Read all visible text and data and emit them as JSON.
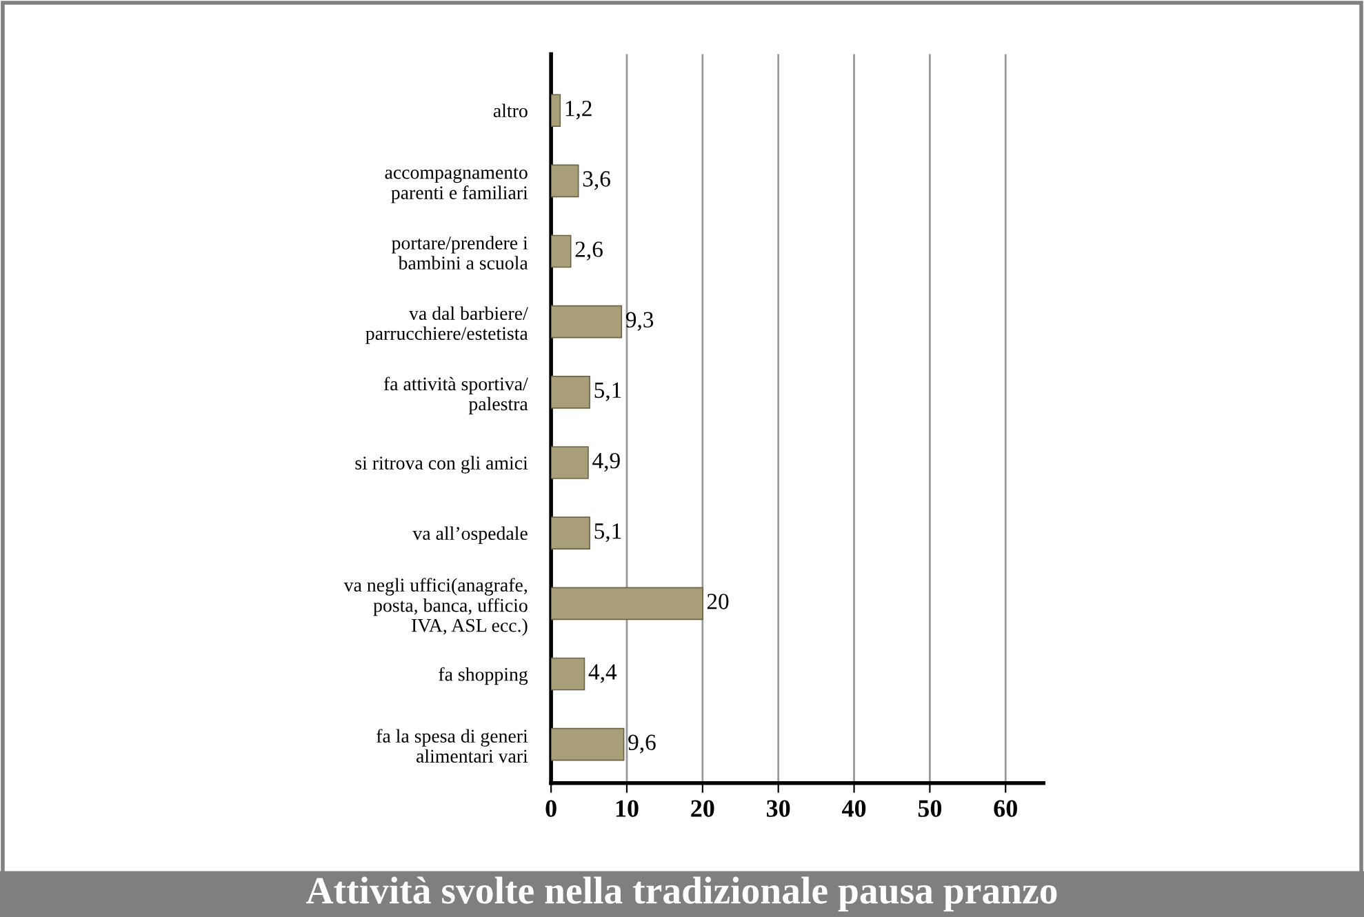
{
  "chart_data": {
    "type": "bar",
    "orientation": "horizontal",
    "title": "Attività svolte nella tradizionale pausa pranzo",
    "categories": [
      "altro",
      "accompagnamento\nparenti e familiari",
      "portare/prendere i\nbambini a scuola",
      "va dal barbiere/\nparrucchiere/estetista",
      "fa attività sportiva/\npalestra",
      "si ritrova con gli amici",
      "va all’ospedale",
      "va negli uffici(anagrafe,\nposta, banca, ufficio\nIVA, ASL ecc.)",
      "fa shopping",
      "fa la spesa di generi\nalimentari vari"
    ],
    "values": [
      1.2,
      3.6,
      2.6,
      9.3,
      5.1,
      4.9,
      5.1,
      20,
      4.4,
      9.6
    ],
    "value_labels": [
      "1,2",
      "3,6",
      "2,6",
      "9,3",
      "5,1",
      "4,9",
      "5,1",
      "20",
      "4,4",
      "9,6"
    ],
    "color": "#a89f78",
    "xlim": [
      0,
      65
    ],
    "xticks": [
      0,
      10,
      20,
      30,
      40,
      50,
      60
    ],
    "grid": "x",
    "legend": false
  }
}
